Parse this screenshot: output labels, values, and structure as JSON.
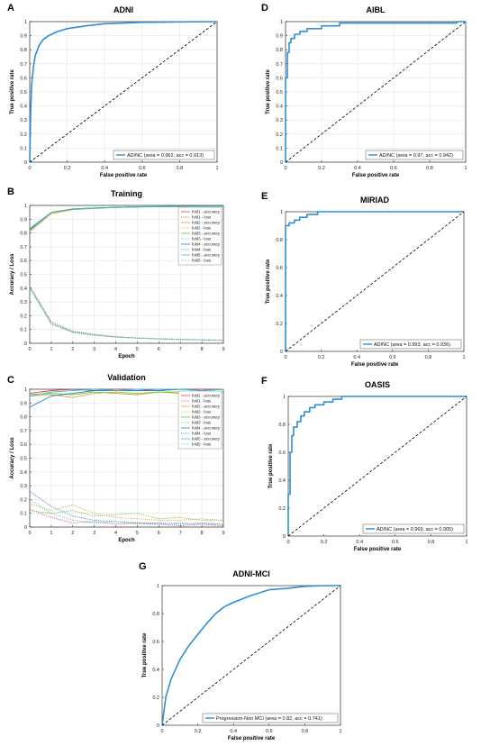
{
  "colors": {
    "roc_line": "#2f8fd6",
    "fold1_accuracy": "#d9434b",
    "fold1_loss": "#d9434b",
    "fold2_accuracy": "#e3a12b",
    "fold2_loss": "#e3a12b",
    "fold3_accuracy": "#6cbb45",
    "fold3_loss": "#6cbb45",
    "fold4_accuracy": "#2b7fc7",
    "fold4_loss": "#2b7fc7",
    "fold5_accuracy": "#35c1c9",
    "fold5_loss": "#35c1c9"
  },
  "chart_data": [
    {
      "id": "A",
      "panel_letter": "A",
      "type": "line",
      "title": "ADNI",
      "xlabel": "False positive rate",
      "ylabel": "True positive rate",
      "xlim": [
        0,
        1
      ],
      "ylim": [
        0,
        1
      ],
      "xticks": [
        "0",
        "0.2",
        "0.4",
        "0.6",
        "0.8",
        "1"
      ],
      "yticks": [
        "0",
        "0.1",
        "0.2",
        "0.3",
        "0.4",
        "0.5",
        "0.6",
        "0.7",
        "0.8",
        "0.9",
        "1"
      ],
      "grid": true,
      "legend_position": "bottom-right",
      "series": [
        {
          "name": "AD/NC (area = 0.962, acc = 0.913)",
          "style": "solid",
          "x": [
            0,
            0.005,
            0.01,
            0.02,
            0.03,
            0.05,
            0.07,
            0.1,
            0.15,
            0.2,
            0.3,
            0.4,
            0.5,
            0.6,
            0.8,
            1.0
          ],
          "y": [
            0,
            0.35,
            0.55,
            0.68,
            0.76,
            0.83,
            0.87,
            0.9,
            0.93,
            0.95,
            0.97,
            0.985,
            0.99,
            0.995,
            0.998,
            1.0
          ]
        },
        {
          "name": "",
          "style": "dashed",
          "x": [
            0,
            1
          ],
          "y": [
            0,
            1
          ]
        }
      ]
    },
    {
      "id": "D",
      "panel_letter": "D",
      "type": "line",
      "title": "AIBL",
      "xlabel": "False positive rate",
      "ylabel": "True positive rate",
      "xlim": [
        0,
        1
      ],
      "ylim": [
        0,
        1
      ],
      "xticks": [
        "0",
        "0.2",
        "0.4",
        "0.6",
        "0.8",
        "1"
      ],
      "yticks": [
        "0",
        "0.1",
        "0.2",
        "0.3",
        "0.4",
        "0.5",
        "0.6",
        "0.7",
        "0.8",
        "0.9",
        "1"
      ],
      "grid": true,
      "legend_position": "bottom-right",
      "series": [
        {
          "name": "AD/NC (area = 0.97, acc = 0.942)",
          "style": "solid",
          "x": [
            0,
            0,
            0.01,
            0.01,
            0.02,
            0.02,
            0.03,
            0.03,
            0.05,
            0.05,
            0.08,
            0.08,
            0.12,
            0.12,
            0.2,
            0.2,
            0.3,
            0.3,
            0.95,
            0.95,
            1.0
          ],
          "y": [
            0,
            0.6,
            0.6,
            0.78,
            0.78,
            0.85,
            0.85,
            0.88,
            0.88,
            0.91,
            0.91,
            0.93,
            0.93,
            0.95,
            0.95,
            0.97,
            0.97,
            0.99,
            0.99,
            1.0,
            1.0
          ]
        },
        {
          "name": "",
          "style": "dashed",
          "x": [
            0,
            1
          ],
          "y": [
            0,
            1
          ]
        }
      ]
    },
    {
      "id": "B",
      "panel_letter": "B",
      "type": "line",
      "title": "Training",
      "xlabel": "Epoch",
      "ylabel": "Accuracy / Loss",
      "xlim": [
        0,
        9
      ],
      "ylim": [
        0,
        1
      ],
      "xticks": [
        "0",
        "1",
        "2",
        "3",
        "4",
        "5",
        "6",
        "7",
        "8",
        "9"
      ],
      "yticks": [
        "0",
        "0.1",
        "0.2",
        "0.3",
        "0.4",
        "0.5",
        "0.6",
        "0.7",
        "0.8",
        "0.9",
        "1"
      ],
      "grid": true,
      "legend_position": "top-right",
      "legend": [
        "fold1 - accuracy",
        "fold1 - loss",
        "fold2 - accuracy",
        "fold2 - loss",
        "fold3 - accuracy",
        "fold3 - loss",
        "fold4 - accuracy",
        "fold4 - loss",
        "fold5 - accuracy",
        "fold5 - loss"
      ],
      "x": [
        0,
        1,
        2,
        3,
        4,
        5,
        6,
        7,
        8,
        9
      ],
      "series": [
        {
          "name": "fold1 - accuracy",
          "style": "solid",
          "color_key": "fold1_accuracy",
          "y": [
            0.82,
            0.95,
            0.97,
            0.98,
            0.985,
            0.99,
            0.99,
            0.992,
            0.993,
            0.995
          ]
        },
        {
          "name": "fold1 - loss",
          "style": "dotted",
          "color_key": "fold1_loss",
          "y": [
            0.41,
            0.15,
            0.08,
            0.06,
            0.045,
            0.038,
            0.032,
            0.028,
            0.025,
            0.022
          ]
        },
        {
          "name": "fold2 - accuracy",
          "style": "solid",
          "color_key": "fold2_accuracy",
          "y": [
            0.81,
            0.94,
            0.97,
            0.978,
            0.985,
            0.988,
            0.99,
            0.992,
            0.993,
            0.994
          ]
        },
        {
          "name": "fold2 - loss",
          "style": "dotted",
          "color_key": "fold2_loss",
          "y": [
            0.42,
            0.16,
            0.09,
            0.065,
            0.05,
            0.04,
            0.034,
            0.03,
            0.026,
            0.023
          ]
        },
        {
          "name": "fold3 - accuracy",
          "style": "solid",
          "color_key": "fold3_accuracy",
          "y": [
            0.82,
            0.95,
            0.972,
            0.98,
            0.986,
            0.99,
            0.991,
            0.993,
            0.994,
            0.995
          ]
        },
        {
          "name": "fold3 - loss",
          "style": "dotted",
          "color_key": "fold3_loss",
          "y": [
            0.41,
            0.15,
            0.085,
            0.062,
            0.047,
            0.039,
            0.033,
            0.029,
            0.025,
            0.022
          ]
        },
        {
          "name": "fold4 - accuracy",
          "style": "solid",
          "color_key": "fold4_accuracy",
          "y": [
            0.83,
            0.95,
            0.975,
            0.982,
            0.987,
            0.99,
            0.992,
            0.993,
            0.994,
            0.996
          ]
        },
        {
          "name": "fold4 - loss",
          "style": "dotted",
          "color_key": "fold4_loss",
          "y": [
            0.4,
            0.14,
            0.08,
            0.058,
            0.045,
            0.037,
            0.031,
            0.027,
            0.024,
            0.021
          ]
        },
        {
          "name": "fold5 - accuracy",
          "style": "solid",
          "color_key": "fold5_accuracy",
          "y": [
            0.82,
            0.95,
            0.973,
            0.981,
            0.986,
            0.989,
            0.991,
            0.992,
            0.994,
            0.995
          ]
        },
        {
          "name": "fold5 - loss",
          "style": "dotted",
          "color_key": "fold5_loss",
          "y": [
            0.41,
            0.15,
            0.083,
            0.06,
            0.046,
            0.038,
            0.032,
            0.028,
            0.025,
            0.022
          ]
        }
      ]
    },
    {
      "id": "E",
      "panel_letter": "E",
      "type": "line",
      "title": "MIRIAD",
      "xlabel": "False positive rate",
      "ylabel": "True positive rate",
      "xlim": [
        0,
        1
      ],
      "ylim": [
        0,
        1
      ],
      "xticks": [
        "0",
        "0.2",
        "0.4",
        "0.6",
        "0.8",
        "1"
      ],
      "yticks": [
        "0",
        "0.2",
        "0.4",
        "0.6",
        "0.8",
        "1"
      ],
      "grid": false,
      "legend_position": "bottom-right",
      "series": [
        {
          "name": "AD/NC (area = 0.993, acc = 0.936)",
          "style": "solid",
          "x": [
            0,
            0,
            0.02,
            0.02,
            0.05,
            0.05,
            0.08,
            0.08,
            0.12,
            0.12,
            0.18,
            0.18,
            1.0
          ],
          "y": [
            0,
            0.9,
            0.9,
            0.92,
            0.92,
            0.94,
            0.94,
            0.96,
            0.96,
            0.98,
            0.98,
            1.0,
            1.0
          ]
        },
        {
          "name": "",
          "style": "dashed",
          "x": [
            0,
            1
          ],
          "y": [
            0,
            1
          ]
        }
      ]
    },
    {
      "id": "C",
      "panel_letter": "C",
      "type": "line",
      "title": "Validation",
      "xlabel": "Epoch",
      "ylabel": "Accuracy / Loss",
      "xlim": [
        0,
        9
      ],
      "ylim": [
        0,
        1
      ],
      "xticks": [
        "0",
        "1",
        "2",
        "3",
        "4",
        "5",
        "6",
        "7",
        "8",
        "9"
      ],
      "yticks": [
        "0",
        "0.1",
        "0.2",
        "0.3",
        "0.4",
        "0.5",
        "0.6",
        "0.7",
        "0.8",
        "0.9",
        "1"
      ],
      "grid": true,
      "legend_position": "top-right",
      "legend": [
        "fold1 - accuracy",
        "fold1 - loss",
        "fold2 - accuracy",
        "fold2 - loss",
        "fold3 - accuracy",
        "fold3 - loss",
        "fold4 - accuracy",
        "fold4 - loss",
        "fold5 - accuracy",
        "fold5 - loss"
      ],
      "x": [
        0,
        1,
        2,
        3,
        4,
        5,
        6,
        7,
        8,
        9
      ],
      "series": [
        {
          "name": "fold1 - accuracy",
          "style": "solid",
          "color_key": "fold1_accuracy",
          "y": [
            0.97,
            0.99,
            1.0,
            0.99,
            1.0,
            1.0,
            0.99,
            1.0,
            1.0,
            1.0
          ]
        },
        {
          "name": "fold1 - loss",
          "style": "dotted",
          "color_key": "fold1_loss",
          "y": [
            0.13,
            0.07,
            0.03,
            0.04,
            0.02,
            0.03,
            0.02,
            0.01,
            0.02,
            0.01
          ]
        },
        {
          "name": "fold2 - accuracy",
          "style": "solid",
          "color_key": "fold2_accuracy",
          "y": [
            0.95,
            0.96,
            0.94,
            0.97,
            0.98,
            0.97,
            0.98,
            0.98,
            0.97,
            0.98
          ]
        },
        {
          "name": "fold2 - loss",
          "style": "dotted",
          "color_key": "fold2_loss",
          "y": [
            0.17,
            0.12,
            0.16,
            0.1,
            0.07,
            0.06,
            0.05,
            0.05,
            0.06,
            0.05
          ]
        },
        {
          "name": "fold3 - accuracy",
          "style": "solid",
          "color_key": "fold3_accuracy",
          "y": [
            0.96,
            0.97,
            0.96,
            0.98,
            0.97,
            0.96,
            0.98,
            0.97,
            0.98,
            0.98
          ]
        },
        {
          "name": "fold3 - loss",
          "style": "dotted",
          "color_key": "fold3_loss",
          "y": [
            0.12,
            0.1,
            0.12,
            0.08,
            0.09,
            0.1,
            0.06,
            0.07,
            0.05,
            0.05
          ]
        },
        {
          "name": "fold4 - accuracy",
          "style": "solid",
          "color_key": "fold4_accuracy",
          "y": [
            0.87,
            0.95,
            0.97,
            0.99,
            0.99,
            0.99,
            0.99,
            1.0,
            0.99,
            1.0
          ]
        },
        {
          "name": "fold4 - loss",
          "style": "dotted",
          "color_key": "fold4_loss",
          "y": [
            0.26,
            0.15,
            0.08,
            0.05,
            0.04,
            0.03,
            0.03,
            0.02,
            0.03,
            0.02
          ]
        },
        {
          "name": "fold5 - accuracy",
          "style": "solid",
          "color_key": "fold5_accuracy",
          "y": [
            0.95,
            0.98,
            0.99,
            1.0,
            0.99,
            1.0,
            1.0,
            1.0,
            0.99,
            1.0
          ]
        },
        {
          "name": "fold5 - loss",
          "style": "dotted",
          "color_key": "fold5_loss",
          "y": [
            0.2,
            0.1,
            0.05,
            0.03,
            0.04,
            0.02,
            0.02,
            0.03,
            0.02,
            0.02
          ]
        }
      ]
    },
    {
      "id": "F",
      "panel_letter": "F",
      "type": "line",
      "title": "OASIS",
      "xlabel": "False positive rate",
      "ylabel": "True positive rate",
      "xlim": [
        0,
        1
      ],
      "ylim": [
        0,
        1
      ],
      "xticks": [
        "0",
        "0.2",
        "0.4",
        "0.6",
        "0.8",
        "1"
      ],
      "yticks": [
        "0",
        "0.2",
        "0.4",
        "0.6",
        "0.8",
        "1"
      ],
      "grid": false,
      "legend_position": "bottom-right",
      "series": [
        {
          "name": "AD/NC (area = 0.969, acc = 0.905)",
          "style": "solid",
          "x": [
            0,
            0,
            0.01,
            0.01,
            0.02,
            0.02,
            0.03,
            0.03,
            0.05,
            0.05,
            0.07,
            0.07,
            0.09,
            0.09,
            0.12,
            0.12,
            0.15,
            0.15,
            0.2,
            0.2,
            0.25,
            0.25,
            0.3,
            0.3,
            1.0
          ],
          "y": [
            0,
            0.3,
            0.3,
            0.6,
            0.6,
            0.72,
            0.72,
            0.78,
            0.78,
            0.82,
            0.82,
            0.86,
            0.86,
            0.89,
            0.89,
            0.92,
            0.92,
            0.94,
            0.94,
            0.96,
            0.96,
            0.98,
            0.98,
            1.0,
            1.0
          ]
        },
        {
          "name": "",
          "style": "dashed",
          "x": [
            0,
            1
          ],
          "y": [
            0,
            1
          ]
        }
      ]
    },
    {
      "id": "G",
      "panel_letter": "G",
      "type": "line",
      "title": "ADNI-MCI",
      "xlabel": "False positive rate",
      "ylabel": "True positive rate",
      "xlim": [
        0,
        1
      ],
      "ylim": [
        0,
        1
      ],
      "xticks": [
        "0",
        "0.2",
        "0.4",
        "0.6",
        "0.8",
        "1"
      ],
      "yticks": [
        "0",
        "0.2",
        "0.4",
        "0.6",
        "0.8",
        "1"
      ],
      "grid": false,
      "legend_position": "bottom-right",
      "series": [
        {
          "name": "Progression-Non MCI (area = 0.82, acc = 0.741)",
          "style": "solid",
          "x": [
            0,
            0.01,
            0.02,
            0.05,
            0.1,
            0.15,
            0.2,
            0.25,
            0.3,
            0.35,
            0.4,
            0.5,
            0.6,
            0.7,
            0.8,
            0.9,
            1.0
          ],
          "y": [
            0,
            0.1,
            0.2,
            0.33,
            0.47,
            0.57,
            0.65,
            0.73,
            0.8,
            0.85,
            0.88,
            0.93,
            0.97,
            0.98,
            0.995,
            1.0,
            1.0
          ]
        },
        {
          "name": "",
          "style": "dashed",
          "x": [
            0,
            1
          ],
          "y": [
            0,
            1
          ]
        }
      ]
    }
  ]
}
